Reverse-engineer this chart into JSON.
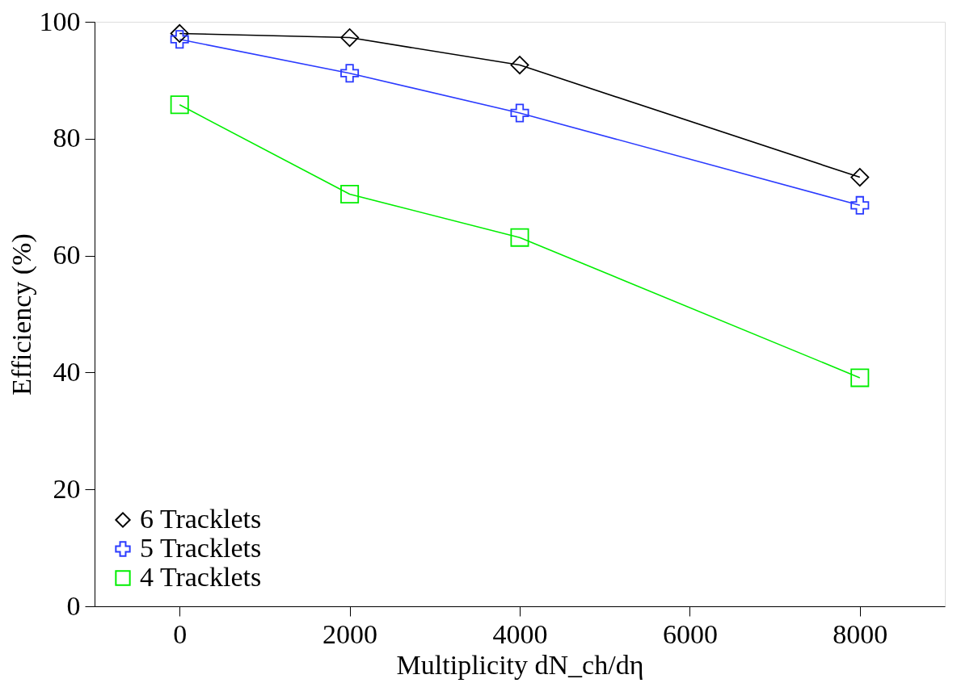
{
  "chart_data": {
    "type": "line",
    "xlabel": "Multiplicity dN_ch/dη",
    "ylabel": "Efficiency (%)",
    "x": [
      0,
      2000,
      4000,
      8000
    ],
    "series": [
      {
        "name": "6 Tracklets",
        "color": "#000000",
        "marker": "diamond",
        "values": [
          98.0,
          97.3,
          92.6,
          73.4
        ]
      },
      {
        "name": "5 Tracklets",
        "color": "#2b3bff",
        "marker": "cross",
        "values": [
          97.0,
          91.2,
          84.4,
          68.6
        ]
      },
      {
        "name": "4 Tracklets",
        "color": "#00ee00",
        "marker": "square",
        "values": [
          85.8,
          70.5,
          63.1,
          39.1
        ]
      }
    ],
    "xlim": [
      -1000,
      9000
    ],
    "xticks": [
      0,
      2000,
      4000,
      6000,
      8000
    ],
    "ylim": [
      0,
      100
    ],
    "yticks": [
      0,
      20,
      40,
      60,
      80,
      100
    ],
    "grid": false,
    "legend": "bottom left",
    "line_style": "solid"
  }
}
